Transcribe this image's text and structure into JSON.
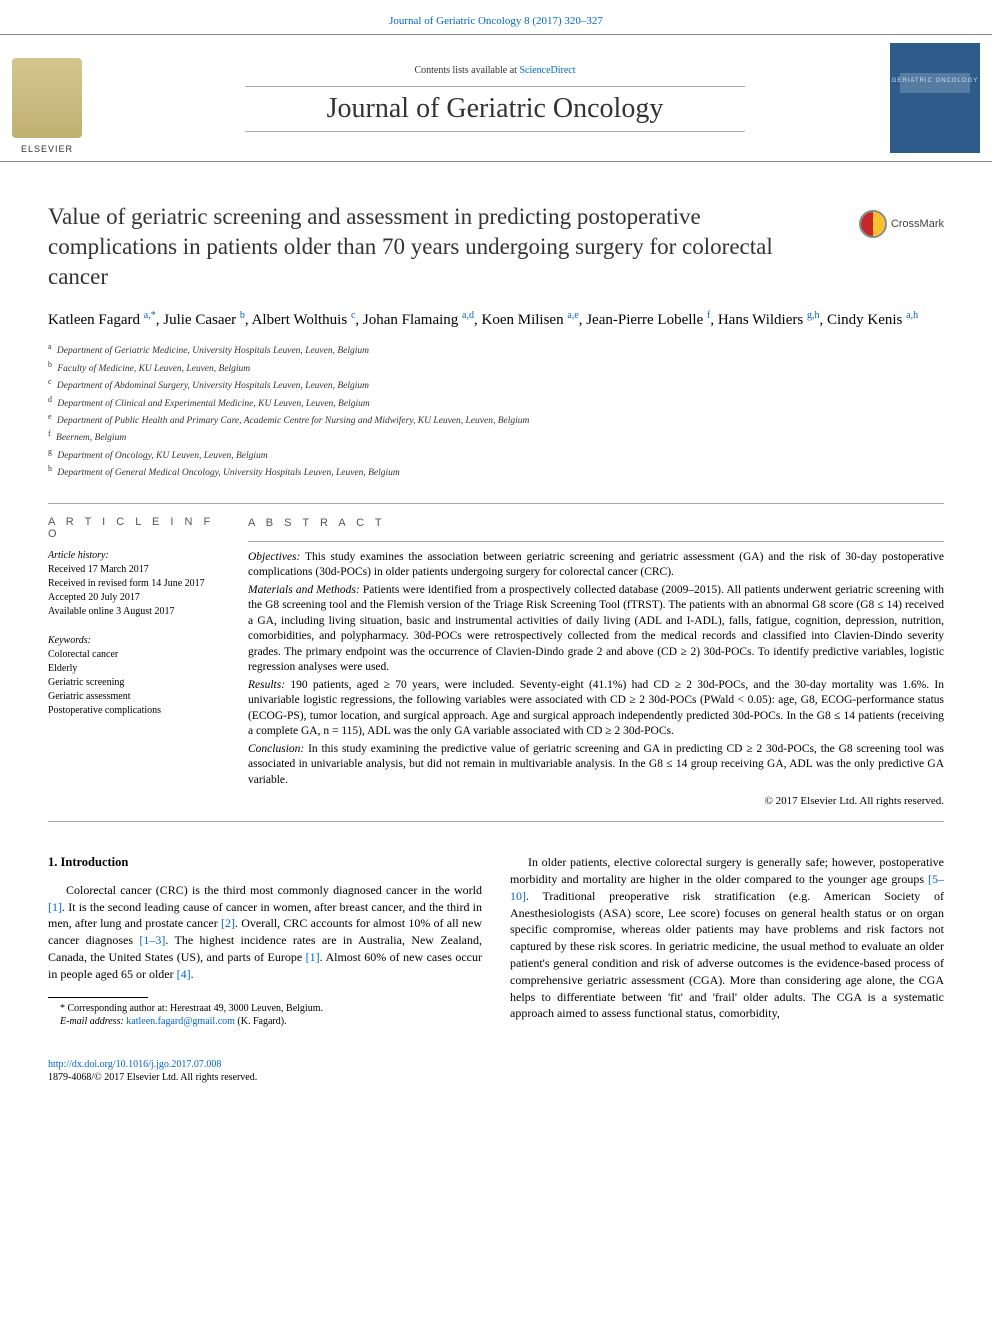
{
  "header": {
    "journal_ref": "Journal of Geriatric Oncology 8 (2017) 320–327",
    "contents_line_pre": "Contents lists available at ",
    "contents_line_link": "ScienceDirect",
    "journal_title": "Journal of Geriatric Oncology",
    "cover_label": "GERIATRIC\nONCOLOGY",
    "crossmark": "CrossMark"
  },
  "article": {
    "title": "Value of geriatric screening and assessment in predicting postoperative complications in patients older than 70 years undergoing surgery for colorectal cancer",
    "authors_raw": [
      {
        "name": "Katleen Fagard",
        "sup": "a,*"
      },
      {
        "name": "Julie Casaer",
        "sup": "b"
      },
      {
        "name": "Albert Wolthuis",
        "sup": "c"
      },
      {
        "name": "Johan Flamaing",
        "sup": "a,d"
      },
      {
        "name": "Koen Milisen",
        "sup": "a,e"
      },
      {
        "name": "Jean-Pierre Lobelle",
        "sup": "f"
      },
      {
        "name": "Hans Wildiers",
        "sup": "g,h"
      },
      {
        "name": "Cindy Kenis",
        "sup": "a,h"
      }
    ],
    "affiliations": [
      {
        "s": "a",
        "t": "Department of Geriatric Medicine, University Hospitals Leuven, Leuven, Belgium"
      },
      {
        "s": "b",
        "t": "Faculty of Medicine, KU Leuven, Leuven, Belgium"
      },
      {
        "s": "c",
        "t": "Department of Abdominal Surgery, University Hospitals Leuven, Leuven, Belgium"
      },
      {
        "s": "d",
        "t": "Department of Clinical and Experimental Medicine, KU Leuven, Leuven, Belgium"
      },
      {
        "s": "e",
        "t": "Department of Public Health and Primary Care, Academic Centre for Nursing and Midwifery, KU Leuven, Leuven, Belgium"
      },
      {
        "s": "f",
        "t": "Beernem, Belgium"
      },
      {
        "s": "g",
        "t": "Department of Oncology, KU Leuven, Leuven, Belgium"
      },
      {
        "s": "h",
        "t": "Department of General Medical Oncology, University Hospitals Leuven, Leuven, Belgium"
      }
    ]
  },
  "meta": {
    "info_label": "A R T I C L E   I N F O",
    "abstract_label": "A B S T R A C T",
    "history_label": "Article history:",
    "history": [
      "Received 17 March 2017",
      "Received in revised form 14 June 2017",
      "Accepted 20 July 2017",
      "Available online 3 August 2017"
    ],
    "keywords_label": "Keywords:",
    "keywords": [
      "Colorectal cancer",
      "Elderly",
      "Geriatric screening",
      "Geriatric assessment",
      "Postoperative complications"
    ]
  },
  "abstract": {
    "objectives_lead": "Objectives:",
    "objectives": " This study examines the association between geriatric screening and geriatric assessment (GA) and the risk of 30-day postoperative complications (30d-POCs) in older patients undergoing surgery for colorectal cancer (CRC).",
    "methods_lead": "Materials and Methods:",
    "methods": " Patients were identified from a prospectively collected database (2009–2015). All patients underwent geriatric screening with the G8 screening tool and the Flemish version of the Triage Risk Screening Tool (fTRST). The patients with an abnormal G8 score (G8 ≤ 14) received a GA, including living situation, basic and instrumental activities of daily living (ADL and I-ADL), falls, fatigue, cognition, depression, nutrition, comorbidities, and polypharmacy. 30d-POCs were retrospectively collected from the medical records and classified into Clavien-Dindo severity grades. The primary endpoint was the occurrence of Clavien-Dindo grade 2 and above (CD ≥ 2) 30d-POCs. To identify predictive variables, logistic regression analyses were used.",
    "results_lead": "Results:",
    "results": " 190 patients, aged ≥ 70 years, were included. Seventy-eight (41.1%) had CD ≥ 2 30d-POCs, and the 30-day mortality was 1.6%. In univariable logistic regressions, the following variables were associated with CD ≥ 2 30d-POCs (PWald < 0.05): age, G8, ECOG-performance status (ECOG-PS), tumor location, and surgical approach. Age and surgical approach independently predicted 30d-POCs. In the G8 ≤ 14 patients (receiving a complete GA, n = 115), ADL was the only GA variable associated with CD ≥ 2 30d-POCs.",
    "conclusion_lead": "Conclusion:",
    "conclusion": " In this study examining the predictive value of geriatric screening and GA in predicting CD ≥ 2 30d-POCs, the G8 screening tool was associated in univariable analysis, but did not remain in multivariable analysis. In the G8 ≤ 14 group receiving GA, ADL was the only predictive GA variable.",
    "copyright": "© 2017 Elsevier Ltd. All rights reserved."
  },
  "body": {
    "section_heading": "1. Introduction",
    "col1_p1a": "Colorectal cancer (CRC) is the third most commonly diagnosed cancer in the world ",
    "col1_p1_ref1": "[1]",
    "col1_p1b": ". It is the second leading cause of cancer in women, after breast cancer, and the third in men, after lung and prostate cancer ",
    "col1_p1_ref2": "[2]",
    "col1_p1c": ". Overall, CRC accounts for almost 10% of all new cancer diagnoses ",
    "col1_p1_ref3": "[1–3]",
    "col1_p1d": ". The highest incidence rates are in Australia, New Zealand, Canada, the United States (US), and parts of Europe ",
    "col1_p1_ref4": "[1]",
    "col1_p1e": ". Almost 60% of new cases occur in people aged 65 or older ",
    "col1_p1_ref5": "[4]",
    "col1_p1f": ".",
    "col2_p1a": "In older patients, elective colorectal surgery is generally safe; however, postoperative morbidity and mortality are higher in the older compared to the younger age groups ",
    "col2_p1_ref1": "[5–10]",
    "col2_p1b": ". Traditional preoperative risk stratification (e.g. American Society of Anesthesiologists (ASA) score, Lee score) focuses on general health status or on organ specific compromise, whereas older patients may have problems and risk factors not captured by these risk scores. In geriatric medicine, the usual method to evaluate an older patient's general condition and risk of adverse outcomes is the evidence-based process of comprehensive geriatric assessment (CGA). More than considering age alone, the CGA helps to differentiate between 'fit' and 'frail' older adults. The CGA is a systematic approach aimed to assess functional status, comorbidity,"
  },
  "footnote": {
    "corr_line": "* Corresponding author at: Herestraat 49, 3000 Leuven, Belgium.",
    "email_label": "E-mail address:",
    "email": "katleen.fagard@gmail.com",
    "email_suffix": " (K. Fagard)."
  },
  "footer": {
    "doi": "http://dx.doi.org/10.1016/j.jgo.2017.07.008",
    "issn_line": "1879-4068/© 2017 Elsevier Ltd. All rights reserved."
  },
  "colors": {
    "link": "#0066cc",
    "text": "#000000",
    "cover_bg": "#2e5c8a",
    "rule": "#aaaaaa"
  },
  "typography": {
    "title_fontsize": 23,
    "journal_title_fontsize": 28,
    "body_fontsize": 12,
    "abstract_fontsize": 11.5,
    "affil_fontsize": 9.5
  }
}
